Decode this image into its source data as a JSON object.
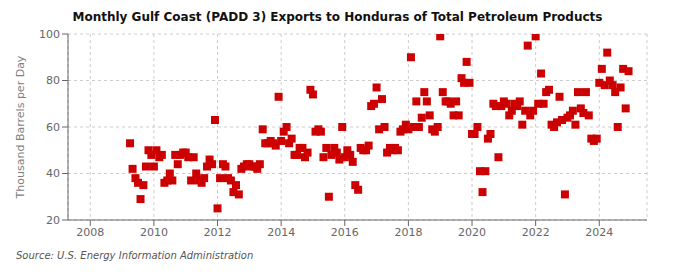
{
  "chart_data": {
    "type": "scatter",
    "title": "Monthly Gulf Coast (PADD 3) Exports to Honduras of Total Petroleum Products",
    "ylabel": "Thousand Barrels per Day",
    "annotations": [
      "Source: U.S. Energy Information Administration"
    ],
    "color": "#cc0000",
    "marker": "square",
    "grid": true,
    "xlim": [
      2007.3,
      2025.5
    ],
    "xticks": [
      2008,
      2010,
      2012,
      2014,
      2016,
      2018,
      2020,
      2022,
      2024
    ],
    "ylim": [
      20,
      100
    ],
    "yticks": [
      20,
      40,
      60,
      80,
      100
    ],
    "x": [
      2009.25,
      2009.33,
      2009.42,
      2009.5,
      2009.58,
      2009.67,
      2009.75,
      2009.83,
      2009.92,
      2010.0,
      2010.08,
      2010.17,
      2010.25,
      2010.33,
      2010.42,
      2010.5,
      2010.58,
      2010.67,
      2010.75,
      2010.83,
      2010.92,
      2011.0,
      2011.08,
      2011.17,
      2011.25,
      2011.33,
      2011.42,
      2011.5,
      2011.58,
      2011.67,
      2011.75,
      2011.83,
      2011.92,
      2012.0,
      2012.08,
      2012.17,
      2012.25,
      2012.33,
      2012.42,
      2012.5,
      2012.58,
      2012.67,
      2012.75,
      2012.83,
      2012.92,
      2013.0,
      2013.08,
      2013.17,
      2013.25,
      2013.33,
      2013.42,
      2013.5,
      2013.58,
      2013.67,
      2013.75,
      2013.83,
      2013.92,
      2014.0,
      2014.08,
      2014.17,
      2014.25,
      2014.33,
      2014.42,
      2014.5,
      2014.58,
      2014.67,
      2014.75,
      2014.83,
      2014.92,
      2015.0,
      2015.08,
      2015.17,
      2015.25,
      2015.33,
      2015.42,
      2015.5,
      2015.58,
      2015.67,
      2015.75,
      2015.83,
      2015.92,
      2016.0,
      2016.08,
      2016.17,
      2016.25,
      2016.33,
      2016.42,
      2016.5,
      2016.58,
      2016.67,
      2016.75,
      2016.83,
      2016.92,
      2017.0,
      2017.08,
      2017.17,
      2017.25,
      2017.33,
      2017.42,
      2017.5,
      2017.58,
      2017.67,
      2017.75,
      2017.83,
      2017.92,
      2018.0,
      2018.08,
      2018.17,
      2018.25,
      2018.33,
      2018.42,
      2018.5,
      2018.58,
      2018.67,
      2018.75,
      2018.83,
      2018.92,
      2019.0,
      2019.08,
      2019.17,
      2019.25,
      2019.33,
      2019.42,
      2019.5,
      2019.58,
      2019.67,
      2019.75,
      2019.83,
      2019.92,
      2020.0,
      2020.08,
      2020.17,
      2020.25,
      2020.33,
      2020.42,
      2020.5,
      2020.58,
      2020.67,
      2020.75,
      2020.83,
      2020.92,
      2021.0,
      2021.08,
      2021.17,
      2021.25,
      2021.33,
      2021.42,
      2021.5,
      2021.58,
      2021.67,
      2021.75,
      2021.83,
      2021.92,
      2022.0,
      2022.08,
      2022.17,
      2022.25,
      2022.33,
      2022.42,
      2022.5,
      2022.58,
      2022.67,
      2022.75,
      2022.83,
      2022.92,
      2023.0,
      2023.08,
      2023.17,
      2023.25,
      2023.33,
      2023.42,
      2023.5,
      2023.58,
      2023.67,
      2023.75,
      2023.83,
      2023.92,
      2024.0,
      2024.08,
      2024.17,
      2024.25,
      2024.33,
      2024.42,
      2024.5,
      2024.58,
      2024.67,
      2024.75,
      2024.83,
      2024.92
    ],
    "values": [
      53,
      42,
      38,
      36,
      29,
      35,
      43,
      50,
      48,
      43,
      50,
      47,
      48,
      36,
      37,
      40,
      37,
      48,
      44,
      48,
      49,
      49,
      47,
      37,
      47,
      40,
      37,
      36,
      38,
      43,
      46,
      44,
      63,
      25,
      38,
      44,
      43,
      38,
      37,
      32,
      35,
      31,
      42,
      43,
      44,
      44,
      43,
      43,
      42,
      44,
      59,
      53,
      53,
      54,
      53,
      52,
      73,
      54,
      58,
      60,
      53,
      55,
      48,
      48,
      51,
      51,
      47,
      49,
      76,
      74,
      58,
      59,
      58,
      47,
      51,
      30,
      48,
      51,
      49,
      46,
      60,
      47,
      50,
      48,
      45,
      35,
      33,
      51,
      50,
      50,
      52,
      69,
      70,
      77,
      59,
      72,
      60,
      49,
      51,
      50,
      51,
      50,
      58,
      59,
      61,
      59,
      90,
      60,
      71,
      60,
      64,
      75,
      71,
      65,
      59,
      58,
      60,
      99,
      75,
      71,
      71,
      70,
      65,
      71,
      65,
      81,
      79,
      88,
      79,
      57,
      57,
      60,
      41,
      32,
      41,
      55,
      57,
      70,
      69,
      47,
      69,
      71,
      70,
      65,
      67,
      70,
      69,
      71,
      61,
      67,
      95,
      65,
      67,
      99,
      70,
      83,
      70,
      75,
      76,
      61,
      60,
      62,
      73,
      63,
      31,
      64,
      65,
      67,
      61,
      75,
      68,
      66,
      75,
      65,
      55,
      54,
      55,
      79,
      85,
      78,
      92,
      80,
      78,
      75,
      60,
      77,
      85,
      68,
      84
    ]
  }
}
